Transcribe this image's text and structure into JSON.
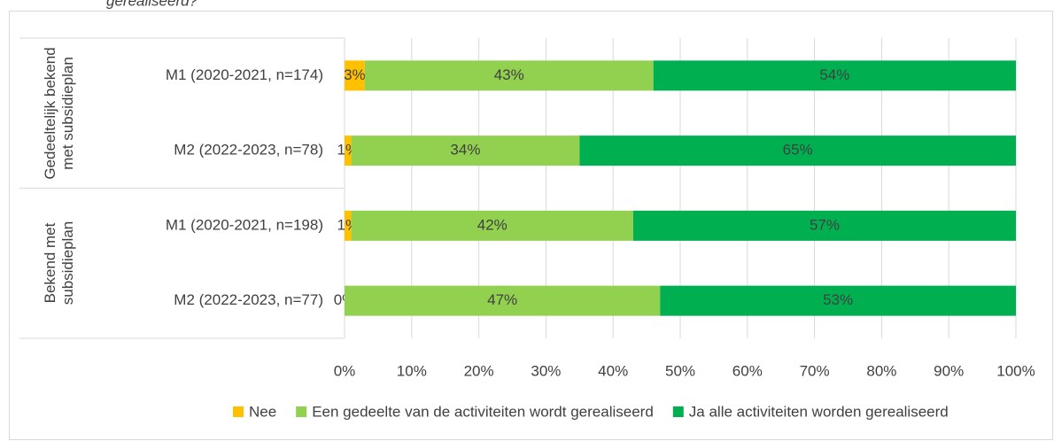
{
  "chart_data": {
    "type": "stacked_bar_horizontal",
    "title": "gerealiseerd?",
    "groups": [
      "Gedeeltelijk bekend met subsidieplan",
      "Bekend met subsidieplan"
    ],
    "categories": [
      "M1 (2020-2021, n=174)",
      "M2 (2022-2023, n=78)",
      "M1 (2020-2021, n=198)",
      "M2 (2022-2023, n=77)"
    ],
    "series": [
      {
        "name": "Nee",
        "color": "#ffc000",
        "values": [
          3,
          1,
          1,
          0
        ],
        "value_labels": [
          "3%",
          "1%",
          "1%",
          "0%"
        ]
      },
      {
        "name": "Een gedeelte van de activiteiten wordt gerealiseerd",
        "color": "#92d050",
        "values": [
          43,
          34,
          42,
          47
        ],
        "value_labels": [
          "43%",
          "34%",
          "42%",
          "47%"
        ]
      },
      {
        "name": "Ja alle activiteiten worden gerealiseerd",
        "color": "#00b050",
        "values": [
          54,
          65,
          57,
          53
        ],
        "value_labels": [
          "54%",
          "65%",
          "57%",
          "53%"
        ]
      }
    ],
    "xlim": [
      0,
      100
    ],
    "xticks": [
      {
        "value": 0,
        "label": "0%"
      },
      {
        "value": 10,
        "label": "10%"
      },
      {
        "value": 20,
        "label": "20%"
      },
      {
        "value": 30,
        "label": "30%"
      },
      {
        "value": 40,
        "label": "40%"
      },
      {
        "value": 50,
        "label": "50%"
      },
      {
        "value": 60,
        "label": "60%"
      },
      {
        "value": 70,
        "label": "70%"
      },
      {
        "value": 80,
        "label": "80%"
      },
      {
        "value": 90,
        "label": "90%"
      },
      {
        "value": 100,
        "label": "100%"
      }
    ],
    "grid": true,
    "legend": "bottom"
  }
}
